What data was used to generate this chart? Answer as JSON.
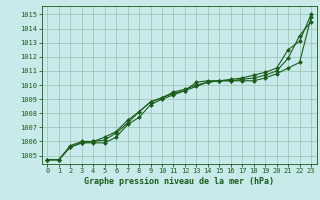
{
  "title": "Graphe pression niveau de la mer (hPa)",
  "bg_color": "#c8eaea",
  "grid_color": "#a0c8b8",
  "line_color": "#1a5c1a",
  "marker_color": "#1a5c1a",
  "xlim": [
    -0.5,
    23.5
  ],
  "ylim": [
    1004.4,
    1015.6
  ],
  "yticks": [
    1005,
    1006,
    1007,
    1008,
    1009,
    1010,
    1011,
    1012,
    1013,
    1014,
    1015
  ],
  "xticks": [
    0,
    1,
    2,
    3,
    4,
    5,
    6,
    7,
    8,
    9,
    10,
    11,
    12,
    13,
    14,
    15,
    16,
    17,
    18,
    19,
    20,
    21,
    22,
    23
  ],
  "series": [
    [
      1004.7,
      1004.7,
      1005.6,
      1005.9,
      1005.9,
      1005.9,
      1006.3,
      1007.2,
      1007.7,
      1008.6,
      1009.0,
      1009.3,
      1009.6,
      1010.2,
      1010.3,
      1010.3,
      1010.3,
      1010.3,
      1010.3,
      1010.5,
      1010.8,
      1011.2,
      1011.6,
      1014.8
    ],
    [
      1004.7,
      1004.7,
      1005.6,
      1005.9,
      1006.0,
      1006.1,
      1006.6,
      1007.3,
      1008.1,
      1008.8,
      1009.1,
      1009.5,
      1009.7,
      1010.0,
      1010.2,
      1010.3,
      1010.3,
      1010.4,
      1010.5,
      1010.7,
      1011.0,
      1011.9,
      1013.5,
      1014.5
    ],
    [
      1004.7,
      1004.7,
      1005.7,
      1006.0,
      1006.0,
      1006.3,
      1006.7,
      1007.5,
      1008.1,
      1008.8,
      1009.1,
      1009.4,
      1009.6,
      1009.9,
      1010.2,
      1010.3,
      1010.4,
      1010.5,
      1010.7,
      1010.9,
      1011.2,
      1012.5,
      1013.1,
      1015.0
    ]
  ],
  "x": [
    0,
    1,
    2,
    3,
    4,
    5,
    6,
    7,
    8,
    9,
    10,
    11,
    12,
    13,
    14,
    15,
    16,
    17,
    18,
    19,
    20,
    21,
    22,
    23
  ],
  "tick_fontsize": 5.0,
  "label_fontsize": 6.0
}
